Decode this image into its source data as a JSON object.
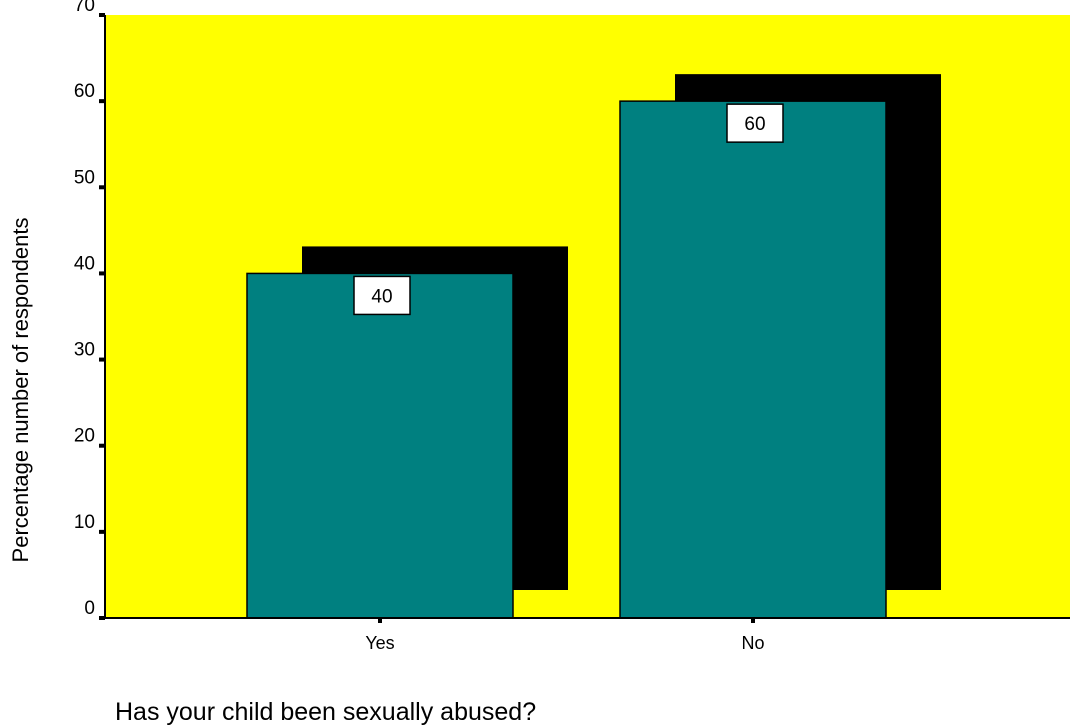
{
  "chart_data": {
    "type": "bar",
    "categories": [
      "Yes",
      "No"
    ],
    "values": [
      40,
      60
    ],
    "data_labels": [
      "40",
      "60"
    ],
    "title": "",
    "xlabel": "Has your child been sexually abused?",
    "ylabel": "Percentage number of respondents",
    "ylim": [
      0,
      70
    ],
    "yticks": [
      0,
      10,
      20,
      30,
      40,
      50,
      60,
      70
    ],
    "ytick_labels": [
      "0",
      "10",
      "20",
      "30",
      "40",
      "50",
      "60",
      "70"
    ],
    "grid": false,
    "legend": "none",
    "style": "3d-shadow",
    "colors": {
      "plot_background": "#ffff00",
      "bar_fill": "#008080",
      "bar_shadow": "#000000",
      "label_box": "#ffffff",
      "axis": "#000000"
    }
  }
}
